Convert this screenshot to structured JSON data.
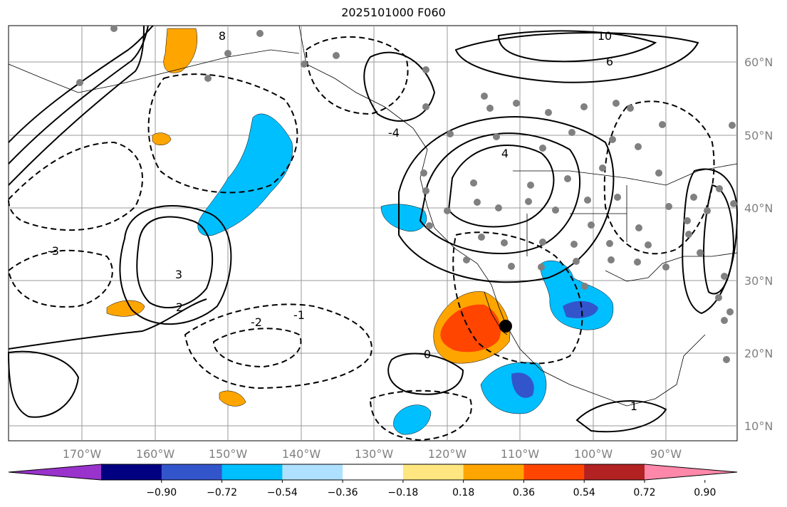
{
  "title": "2025101000 F060",
  "lon_labels": [
    "170°W",
    "160°W",
    "150°W",
    "140°W",
    "130°W",
    "120°W",
    "110°W",
    "100°W",
    "90°W"
  ],
  "lat_labels": [
    "60°N",
    "50°N",
    "40°N",
    "30°N",
    "20°N",
    "10°N"
  ],
  "colorbar": {
    "ticks": [
      "−0.90",
      "−0.72",
      "−0.54",
      "−0.36",
      "−0.18",
      "0.18",
      "0.36",
      "0.54",
      "0.72",
      "0.90"
    ],
    "colors": [
      "#9933cc",
      "#000080",
      "#3355cc",
      "#00bfff",
      "#aee0ff",
      "#ffffff",
      "#ffe680",
      "#ffa500",
      "#ff4500",
      "#b22222",
      "#ff88aa"
    ]
  },
  "contour_labels": [
    "10",
    "8",
    "6",
    "4",
    "3",
    "2",
    "1",
    "0",
    "-1",
    "-2",
    "-3",
    "-4"
  ],
  "marker": {
    "color": "#000000"
  }
}
